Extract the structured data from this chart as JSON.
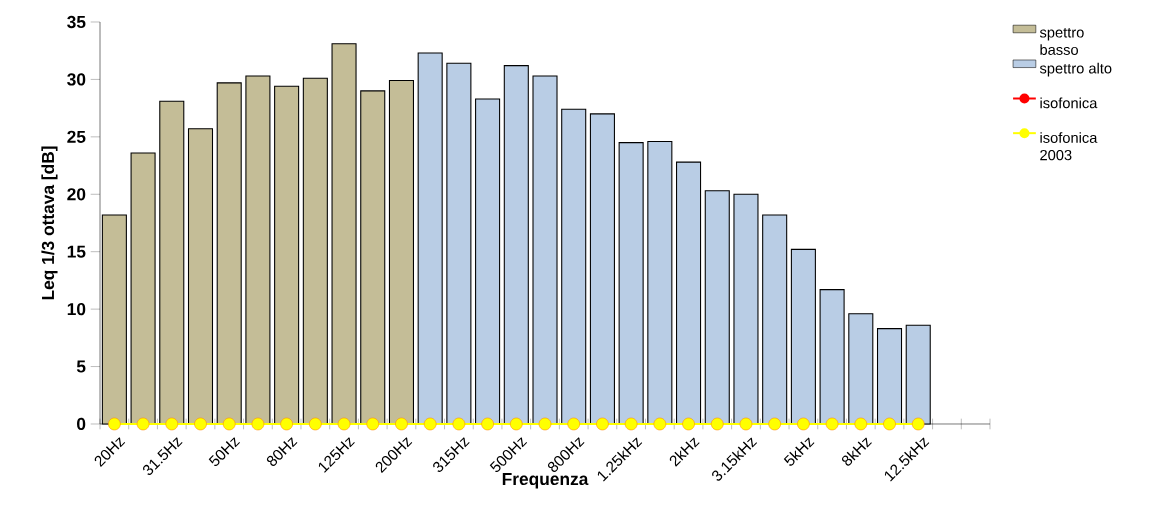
{
  "chart_data": {
    "type": "bar",
    "xlabel": "Frequenza",
    "ylabel": "Leq 1/3 ottava [dB]",
    "categories": [
      "20Hz",
      null,
      "31.5Hz",
      null,
      "50Hz",
      null,
      "80Hz",
      null,
      "125Hz",
      null,
      "200Hz",
      null,
      "315Hz",
      null,
      "500Hz",
      null,
      "800Hz",
      null,
      "1.25kHz",
      null,
      "2kHz",
      null,
      "3.15kHz",
      null,
      "5kHz",
      null,
      "8kHz",
      null,
      "12.5kHz",
      null,
      null
    ],
    "series": [
      {
        "name": "spettro basso",
        "color": "#c4bd97",
        "values": [
          18.2,
          23.6,
          28.1,
          25.7,
          29.7,
          30.3,
          29.4,
          30.1,
          33.1,
          29.0,
          29.9,
          null,
          null,
          null,
          null,
          null,
          null,
          null,
          null,
          null,
          null,
          null,
          null,
          null,
          null,
          null,
          null,
          null,
          null,
          null,
          null
        ]
      },
      {
        "name": "spettro alto",
        "color": "#b9cde5",
        "values": [
          null,
          null,
          null,
          null,
          null,
          null,
          null,
          null,
          null,
          null,
          null,
          32.3,
          31.4,
          28.3,
          31.2,
          30.3,
          27.4,
          27.0,
          24.5,
          24.6,
          22.8,
          20.3,
          20.0,
          18.2,
          15.2,
          11.7,
          9.6,
          8.3,
          8.6,
          null,
          null
        ]
      },
      {
        "name": "isofonica",
        "type": "line",
        "color": "#ff0000",
        "values": [
          null,
          null,
          null,
          null,
          null,
          null,
          null,
          null,
          null,
          null,
          null,
          null,
          null,
          null,
          null,
          null,
          null,
          null,
          null,
          null,
          null,
          null,
          null,
          null,
          null,
          null,
          null,
          null,
          null,
          null,
          null
        ]
      },
      {
        "name": "isofonica 2003",
        "type": "line",
        "color": "#ffff00",
        "values": [
          0,
          0,
          0,
          0,
          0,
          0,
          0,
          0,
          0,
          0,
          0,
          0,
          0,
          0,
          0,
          0,
          0,
          0,
          0,
          0,
          0,
          0,
          0,
          0,
          0,
          0,
          0,
          0,
          0,
          null,
          null
        ]
      }
    ],
    "ylim": [
      0,
      35
    ],
    "yticks": [
      0,
      5,
      10,
      15,
      20,
      25,
      30,
      35
    ],
    "legend": "top right",
    "marker": "circle"
  }
}
